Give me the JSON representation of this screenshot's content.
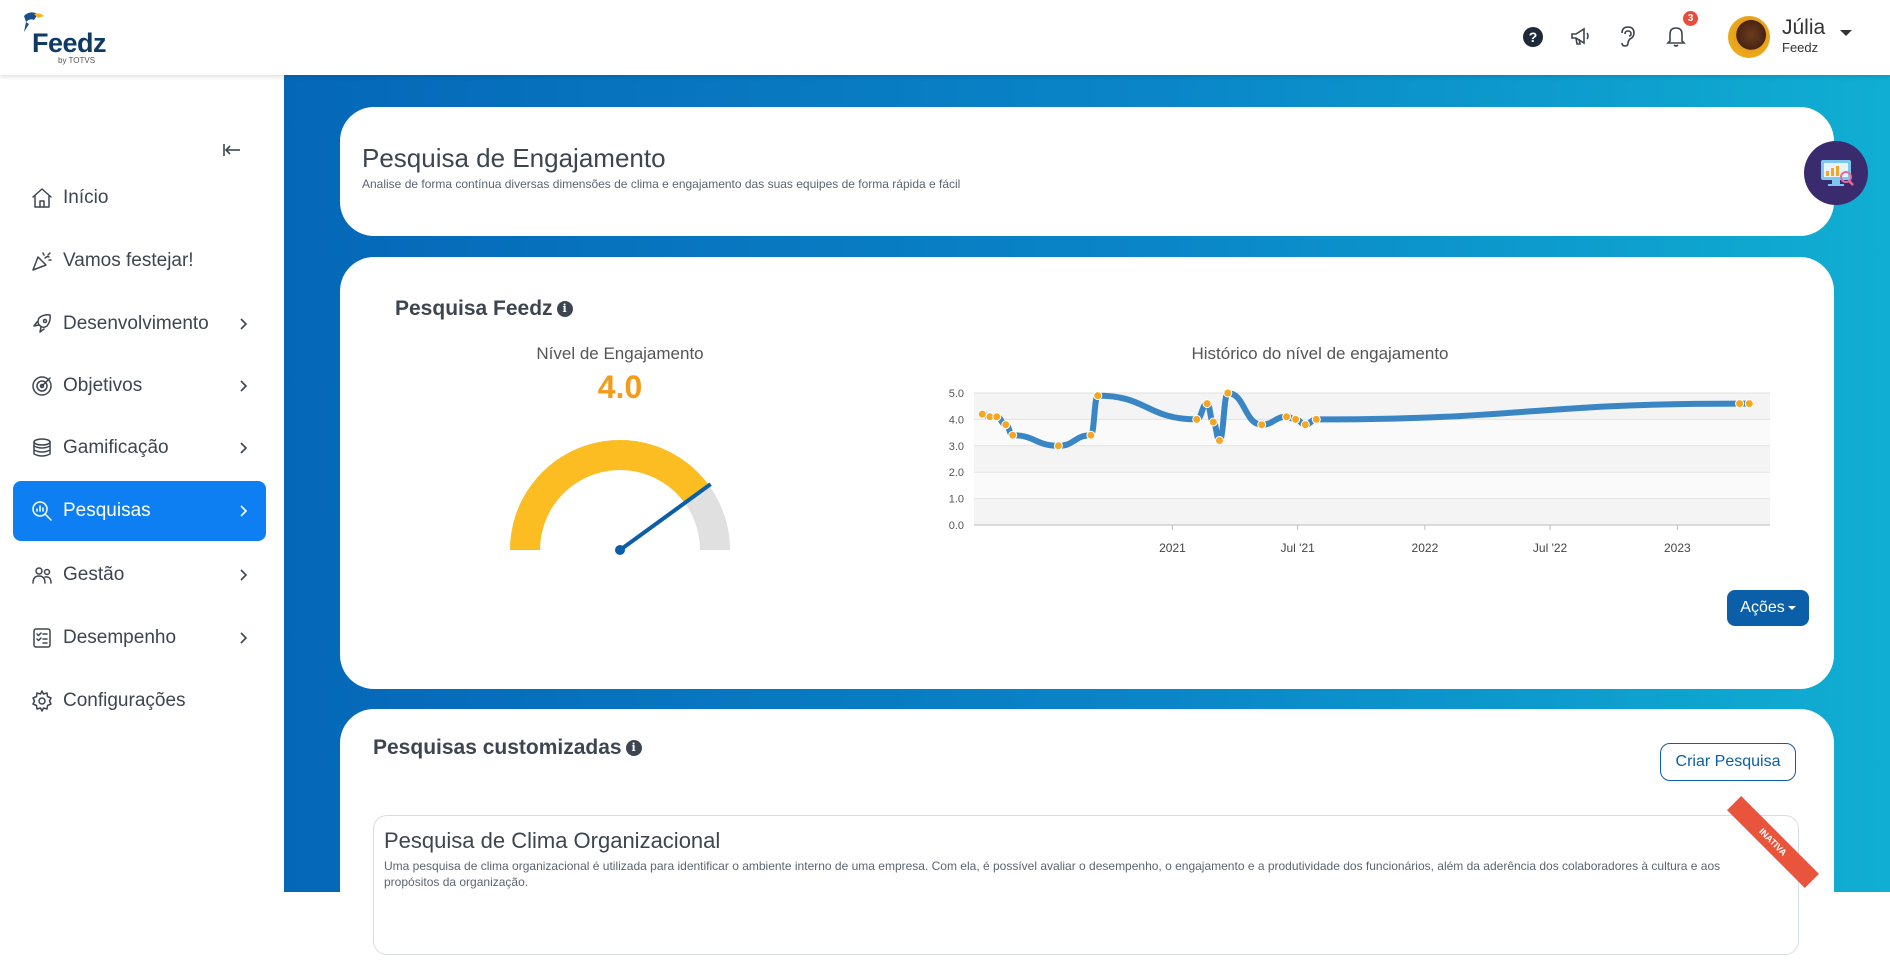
{
  "header": {
    "logo_text": "Feedz",
    "logo_sub": "by TOTVS",
    "notification_count": "3",
    "user_name": "Júlia",
    "user_org": "Feedz"
  },
  "sidebar": {
    "items": [
      {
        "label": "Início",
        "icon": "home-icon",
        "has_chevron": false
      },
      {
        "label": "Vamos festejar!",
        "icon": "party-icon",
        "has_chevron": false
      },
      {
        "label": "Desenvolvimento",
        "icon": "rocket-icon",
        "has_chevron": true
      },
      {
        "label": "Objetivos",
        "icon": "target-icon",
        "has_chevron": true
      },
      {
        "label": "Gamificação",
        "icon": "coins-icon",
        "has_chevron": true
      },
      {
        "label": "Pesquisas",
        "icon": "search-chart-icon",
        "has_chevron": true,
        "active": true
      },
      {
        "label": "Gestão",
        "icon": "people-icon",
        "has_chevron": true
      },
      {
        "label": "Desempenho",
        "icon": "checklist-icon",
        "has_chevron": true
      },
      {
        "label": "Configurações",
        "icon": "gear-icon",
        "has_chevron": false
      }
    ]
  },
  "engagement_card": {
    "title": "Pesquisa de Engajamento",
    "subtitle": "Analise de forma contínua diversas dimensões de clima e engajamento das suas equipes de forma rápida e fácil"
  },
  "feedz_survey": {
    "title": "Pesquisa Feedz",
    "gauge_label": "Nível de Engajamento",
    "gauge_value": "4.0",
    "chart_title": "Histórico do nível de engajamento",
    "actions_label": "Ações"
  },
  "chart_data": {
    "type": "line",
    "title": "Histórico do nível de engajamento",
    "xlabel": "",
    "ylabel": "",
    "ylim": [
      0,
      5
    ],
    "y_ticks": [
      "0.0",
      "1.0",
      "2.0",
      "3.0",
      "4.0",
      "5.0"
    ],
    "x_ticks": [
      "2021",
      "Jul '21",
      "2022",
      "Jul '22",
      "2023"
    ],
    "x": [
      "2020-04-01",
      "2020-04-12",
      "2020-04-22",
      "2020-05-05",
      "2020-05-15",
      "2020-07-20",
      "2020-09-05",
      "2020-09-15",
      "2021-02-05",
      "2021-02-20",
      "2021-03-01",
      "2021-03-10",
      "2021-03-22",
      "2021-05-10",
      "2021-06-15",
      "2021-06-28",
      "2021-07-12",
      "2021-07-28",
      "2023-04-01",
      "2023-04-15"
    ],
    "series": [
      {
        "values": [
          4.2,
          4.1,
          4.1,
          3.8,
          3.4,
          3.0,
          3.4,
          4.9,
          4.0,
          4.6,
          3.9,
          3.2,
          5.0,
          3.8,
          4.1,
          4.0,
          3.8,
          4.0,
          4.6,
          4.6
        ]
      }
    ],
    "grid": true,
    "legend": "none",
    "line_color": "#3a86c4",
    "point_color": "#f5a623"
  },
  "custom_surveys": {
    "title": "Pesquisas customizadas",
    "create_label": "Criar Pesquisa",
    "items": [
      {
        "title": "Pesquisa de Clima Organizacional",
        "description": "Uma pesquisa de clima organizacional é utilizada para identificar o ambiente interno de uma empresa. Com ela, é possível avaliar o desempenho, o engajamento e a produtividade dos funcionários, além da aderência dos colaboradores à cultura e aos propósitos da organização.",
        "status": "INATIVA"
      }
    ]
  },
  "colors": {
    "accent": "#0d7ff2",
    "gauge_fill": "#fbbd21",
    "gauge_value": "#f49b1c",
    "needle": "#0b5fa8"
  }
}
